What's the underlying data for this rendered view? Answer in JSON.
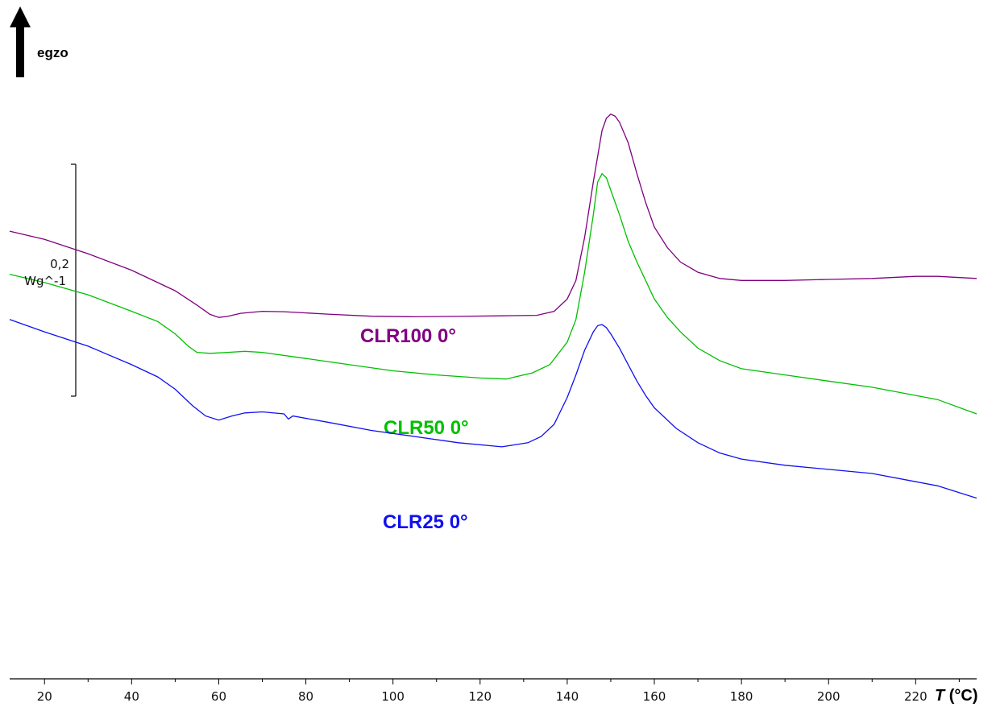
{
  "chart_data": {
    "type": "line",
    "xlabel_symbol": "T",
    "xlabel_unit": " (°C)",
    "xlim": [
      12,
      234
    ],
    "x_ticks": [
      20,
      40,
      60,
      80,
      100,
      120,
      140,
      160,
      180,
      200,
      220
    ],
    "exo_label": "egzo",
    "scale_bar": {
      "value": "0,2",
      "unit": "Wg^-1"
    },
    "series": [
      {
        "name": "CLR100 0°",
        "color": "#800080",
        "points": [
          [
            12,
            0.58
          ],
          [
            20,
            0.54
          ],
          [
            30,
            0.47
          ],
          [
            40,
            0.39
          ],
          [
            50,
            0.29
          ],
          [
            55,
            0.22
          ],
          [
            58,
            0.175
          ],
          [
            60,
            0.16
          ],
          [
            62,
            0.165
          ],
          [
            65,
            0.18
          ],
          [
            70,
            0.19
          ],
          [
            75,
            0.188
          ],
          [
            85,
            0.176
          ],
          [
            95,
            0.166
          ],
          [
            105,
            0.163
          ],
          [
            115,
            0.165
          ],
          [
            125,
            0.168
          ],
          [
            133,
            0.17
          ],
          [
            137,
            0.19
          ],
          [
            140,
            0.25
          ],
          [
            142,
            0.34
          ],
          [
            144,
            0.55
          ],
          [
            146,
            0.82
          ],
          [
            148,
            1.07
          ],
          [
            149,
            1.13
          ],
          [
            150,
            1.15
          ],
          [
            151,
            1.14
          ],
          [
            152,
            1.11
          ],
          [
            154,
            1.01
          ],
          [
            156,
            0.86
          ],
          [
            158,
            0.72
          ],
          [
            160,
            0.6
          ],
          [
            163,
            0.5
          ],
          [
            166,
            0.43
          ],
          [
            170,
            0.38
          ],
          [
            175,
            0.35
          ],
          [
            180,
            0.34
          ],
          [
            190,
            0.34
          ],
          [
            200,
            0.345
          ],
          [
            210,
            0.35
          ],
          [
            220,
            0.36
          ],
          [
            225,
            0.36
          ],
          [
            234,
            0.35
          ]
        ]
      },
      {
        "name": "CLR50 0°",
        "color": "#00c000",
        "points": [
          [
            12,
            0.37
          ],
          [
            20,
            0.33
          ],
          [
            30,
            0.27
          ],
          [
            40,
            0.19
          ],
          [
            46,
            0.14
          ],
          [
            50,
            0.08
          ],
          [
            53,
            0.02
          ],
          [
            55,
            -0.01
          ],
          [
            58,
            -0.015
          ],
          [
            62,
            -0.01
          ],
          [
            66,
            -0.005
          ],
          [
            70,
            -0.01
          ],
          [
            80,
            -0.04
          ],
          [
            90,
            -0.07
          ],
          [
            100,
            -0.1
          ],
          [
            110,
            -0.12
          ],
          [
            120,
            -0.135
          ],
          [
            126,
            -0.14
          ],
          [
            132,
            -0.11
          ],
          [
            136,
            -0.07
          ],
          [
            140,
            0.04
          ],
          [
            142,
            0.15
          ],
          [
            144,
            0.38
          ],
          [
            146,
            0.66
          ],
          [
            147,
            0.82
          ],
          [
            148,
            0.86
          ],
          [
            149,
            0.84
          ],
          [
            150,
            0.78
          ],
          [
            152,
            0.66
          ],
          [
            154,
            0.53
          ],
          [
            156,
            0.43
          ],
          [
            158,
            0.34
          ],
          [
            160,
            0.25
          ],
          [
            163,
            0.16
          ],
          [
            166,
            0.09
          ],
          [
            170,
            0.01
          ],
          [
            175,
            -0.05
          ],
          [
            180,
            -0.09
          ],
          [
            190,
            -0.12
          ],
          [
            200,
            -0.15
          ],
          [
            210,
            -0.18
          ],
          [
            220,
            -0.22
          ],
          [
            225,
            -0.24
          ],
          [
            234,
            -0.31
          ]
        ]
      },
      {
        "name": "CLR25 0°",
        "color": "#1010f0",
        "points": [
          [
            12,
            0.15
          ],
          [
            20,
            0.09
          ],
          [
            30,
            0.02
          ],
          [
            40,
            -0.07
          ],
          [
            46,
            -0.13
          ],
          [
            50,
            -0.19
          ],
          [
            54,
            -0.27
          ],
          [
            57,
            -0.32
          ],
          [
            60,
            -0.34
          ],
          [
            63,
            -0.32
          ],
          [
            66,
            -0.305
          ],
          [
            70,
            -0.3
          ],
          [
            75,
            -0.31
          ],
          [
            76,
            -0.335
          ],
          [
            77,
            -0.32
          ],
          [
            85,
            -0.35
          ],
          [
            95,
            -0.39
          ],
          [
            105,
            -0.42
          ],
          [
            115,
            -0.45
          ],
          [
            125,
            -0.47
          ],
          [
            131,
            -0.45
          ],
          [
            134,
            -0.42
          ],
          [
            137,
            -0.36
          ],
          [
            140,
            -0.23
          ],
          [
            142,
            -0.12
          ],
          [
            144,
            0.0
          ],
          [
            146,
            0.09
          ],
          [
            147,
            0.12
          ],
          [
            148,
            0.125
          ],
          [
            149,
            0.11
          ],
          [
            150,
            0.08
          ],
          [
            152,
            0.01
          ],
          [
            154,
            -0.07
          ],
          [
            156,
            -0.15
          ],
          [
            158,
            -0.22
          ],
          [
            160,
            -0.28
          ],
          [
            165,
            -0.38
          ],
          [
            170,
            -0.45
          ],
          [
            175,
            -0.5
          ],
          [
            180,
            -0.53
          ],
          [
            190,
            -0.56
          ],
          [
            200,
            -0.58
          ],
          [
            210,
            -0.6
          ],
          [
            220,
            -0.64
          ],
          [
            225,
            -0.66
          ],
          [
            234,
            -0.72
          ]
        ]
      }
    ]
  }
}
